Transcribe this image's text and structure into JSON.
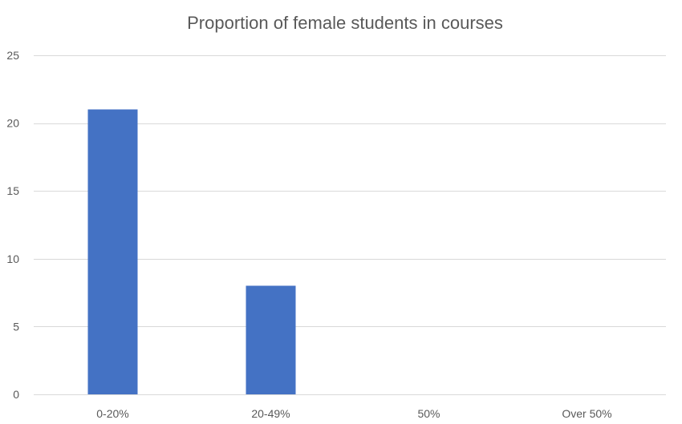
{
  "chart_data": {
    "type": "bar",
    "title": "Proportion of female students in courses",
    "xlabel": "",
    "ylabel": "",
    "categories": [
      "0-20%",
      "20-49%",
      "50%",
      "Over 50%"
    ],
    "values": [
      21,
      8,
      0,
      0
    ],
    "ylim": [
      0,
      25
    ],
    "yticks": [
      0,
      5,
      10,
      15,
      20,
      25
    ],
    "grid": true,
    "legend": "none",
    "colors": {
      "bar": "#4472c4",
      "grid": "#d9d9d9",
      "text": "#595959",
      "background": "#ffffff"
    }
  }
}
